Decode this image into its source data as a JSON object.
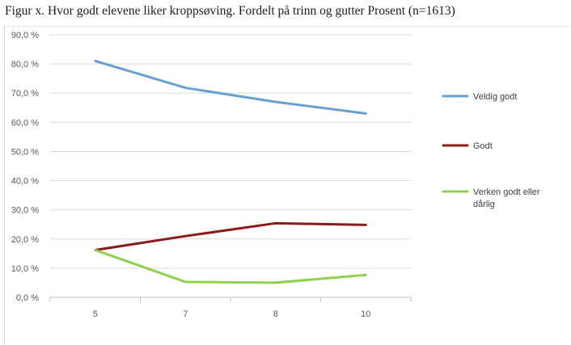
{
  "chart_data": {
    "type": "line",
    "title": "Figur x. Hvor godt elevene liker kroppsøving. Fordelt på trinn og gutter Prosent (n=1613)",
    "xlabel": "",
    "ylabel": "",
    "categories": [
      "5",
      "7",
      "8",
      "10"
    ],
    "ylim": [
      0,
      90
    ],
    "yticks": [
      "0,0 %",
      "10,0 %",
      "20,0 %",
      "30,0 %",
      "40,0 %",
      "50,0 %",
      "60,0 %",
      "70,0 %",
      "80,0 %",
      "90,0 %"
    ],
    "grid": true,
    "legend_position": "right",
    "series": [
      {
        "name": "Veldig godt",
        "color": "#6a9fd3",
        "values": [
          81.0,
          71.8,
          67.0,
          63.0
        ]
      },
      {
        "name": "Godt",
        "color": "#8b1a1a",
        "values": [
          16.2,
          21.0,
          25.4,
          24.8
        ]
      },
      {
        "name": "Verken godt eller dårlig",
        "color": "#8fd14f",
        "values": [
          16.2,
          5.3,
          5.0,
          7.7
        ]
      }
    ]
  }
}
